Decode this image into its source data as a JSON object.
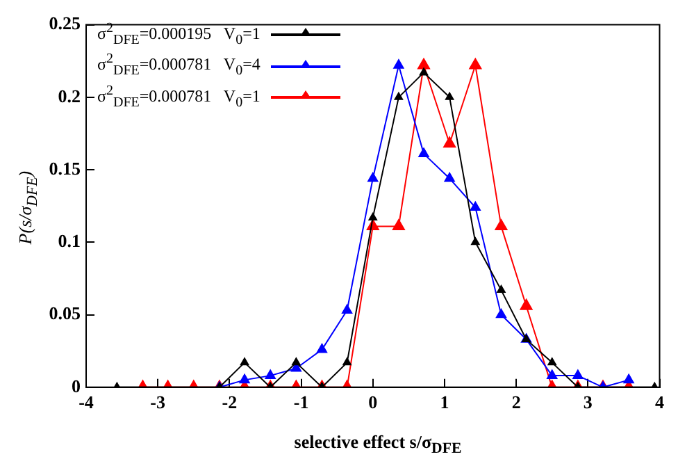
{
  "chart_data": {
    "type": "line",
    "xlabel": "selective effect s/σ$_{DFE}$",
    "ylabel": "P(s/σ$_{DFE}$)",
    "xlim": [
      -4,
      4
    ],
    "xticks": [
      -4,
      -3,
      -2,
      -1,
      0,
      1,
      2,
      3,
      4
    ],
    "ylim": [
      0,
      0.25
    ],
    "yticks": [
      0,
      0.05,
      0.1,
      0.15,
      0.2,
      0.25
    ],
    "grid": false,
    "legend": "top left",
    "marker": "triangle",
    "line_style": "solid",
    "series": [
      {
        "name": "σ$^{2}$$_{DFE}$=0.000195   V$_{0}$=1",
        "color": "#000000",
        "x": [
          -3.57,
          -2.14,
          -1.79,
          -1.43,
          -1.07,
          -0.71,
          -0.36,
          0,
          0.36,
          0.71,
          1.07,
          1.43,
          1.79,
          2.14,
          2.5,
          2.86,
          3.93
        ],
        "values": [
          0,
          0,
          0.017,
          0,
          0.017,
          0,
          0.017,
          0.117,
          0.2,
          0.217,
          0.2,
          0.1,
          0.067,
          0.033,
          0.017,
          0,
          0
        ]
      },
      {
        "name": "σ$^{2}$$_{DFE}$=0.000781   V$_{0}$=4",
        "color": "#0000ff",
        "x": [
          -2.14,
          -1.79,
          -1.43,
          -1.07,
          -0.71,
          -0.36,
          0,
          0.36,
          0.71,
          1.07,
          1.43,
          1.79,
          2.14,
          2.5,
          2.86,
          3.21,
          3.57
        ],
        "values": [
          0,
          0.005,
          0.008,
          0.013,
          0.026,
          0.053,
          0.144,
          0.222,
          0.161,
          0.144,
          0.124,
          0.05,
          0.033,
          0.008,
          0.008,
          0,
          0.005
        ]
      },
      {
        "name": "σ$^{2}$$_{DFE}$=0.000781   V$_{0}$=1",
        "color": "#ff0000",
        "x": [
          -3.21,
          -2.86,
          -2.5,
          -2.14,
          -1.79,
          -1.43,
          -1.07,
          -0.71,
          -0.36,
          0,
          0.36,
          0.71,
          1.07,
          1.43,
          1.79,
          2.14,
          2.5,
          2.86,
          3.21,
          3.57
        ],
        "values": [
          0,
          0,
          0,
          0,
          0,
          0,
          0,
          0,
          0,
          0.111,
          0.111,
          0.222,
          0.168,
          0.222,
          0.111,
          0.056,
          0,
          0,
          0,
          0
        ]
      }
    ]
  }
}
